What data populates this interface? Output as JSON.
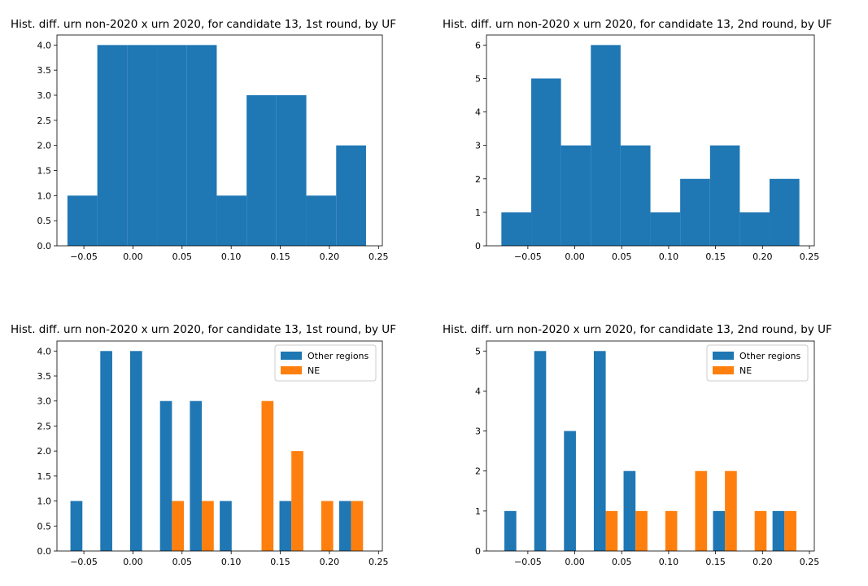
{
  "chart_data": [
    {
      "type": "bar",
      "title": "Hist. diff. urn non-2020 x urn 2020, for candidate 13, 1st round, by UF",
      "xlim": [
        -0.0774,
        0.2539
      ],
      "ylim": [
        0,
        4.2
      ],
      "x_ticks": [
        "−0.05",
        "0.00",
        "0.05",
        "0.10",
        "0.15",
        "0.20",
        "0.25"
      ],
      "x_tick_values": [
        -0.05,
        0,
        0.05,
        0.1,
        0.15,
        0.2,
        0.25
      ],
      "y_ticks": [
        "0.0",
        "0.5",
        "1.0",
        "1.5",
        "2.0",
        "2.5",
        "3.0",
        "3.5",
        "4.0"
      ],
      "y_tick_values": [
        0,
        0.5,
        1,
        1.5,
        2,
        2.5,
        3,
        3.5,
        4
      ],
      "bin_edges": [
        -0.0667,
        -0.0363,
        -0.0059,
        0.0245,
        0.0549,
        0.0853,
        0.1157,
        0.1461,
        0.1765,
        0.2069,
        0.2373
      ],
      "series": [
        {
          "color": "#1f77b4",
          "values": [
            1,
            4,
            4,
            4,
            4,
            1,
            3,
            3,
            1,
            2
          ]
        }
      ]
    },
    {
      "type": "bar",
      "title": "Hist. diff. urn non-2020 x urn 2020, for candidate 13, 2nd round, by UF",
      "xlim": [
        -0.0941,
        0.2552
      ],
      "ylim": [
        0,
        6.3
      ],
      "x_ticks": [
        "−0.05",
        "0.00",
        "0.05",
        "0.10",
        "0.15",
        "0.20",
        "0.25"
      ],
      "x_tick_values": [
        -0.05,
        0,
        0.05,
        0.1,
        0.15,
        0.2,
        0.25
      ],
      "y_ticks": [
        "0",
        "1",
        "2",
        "3",
        "4",
        "5",
        "6"
      ],
      "y_tick_values": [
        0,
        1,
        2,
        3,
        4,
        5,
        6
      ],
      "bin_edges": [
        -0.0782,
        -0.0464,
        -0.0147,
        0.0171,
        0.0488,
        0.0806,
        0.1123,
        0.1441,
        0.1758,
        0.2075,
        0.2393
      ],
      "series": [
        {
          "color": "#1f77b4",
          "values": [
            1,
            5,
            3,
            6,
            3,
            1,
            2,
            3,
            1,
            2
          ]
        }
      ]
    },
    {
      "type": "bar",
      "title": "Hist. diff. urn non-2020 x urn 2020, for candidate 13, 1st round, by UF",
      "xlim": [
        -0.0774,
        0.2539
      ],
      "ylim": [
        0,
        4.2
      ],
      "x_ticks": [
        "−0.05",
        "0.00",
        "0.05",
        "0.10",
        "0.15",
        "0.20",
        "0.25"
      ],
      "x_tick_values": [
        -0.05,
        0,
        0.05,
        0.1,
        0.15,
        0.2,
        0.25
      ],
      "y_ticks": [
        "0.0",
        "0.5",
        "1.0",
        "1.5",
        "2.0",
        "2.5",
        "3.0",
        "3.5",
        "4.0"
      ],
      "y_tick_values": [
        0,
        0.5,
        1,
        1.5,
        2,
        2.5,
        3,
        3.5,
        4
      ],
      "bin_edges": [
        -0.0667,
        -0.0363,
        -0.0059,
        0.0245,
        0.0549,
        0.0853,
        0.1157,
        0.1461,
        0.1765,
        0.2069,
        0.2373
      ],
      "legend": "top-right",
      "series": [
        {
          "name": "Other regions",
          "color": "#1f77b4",
          "values": [
            1,
            4,
            4,
            3,
            3,
            1,
            0,
            1,
            0,
            1
          ]
        },
        {
          "name": "NE",
          "color": "#ff7f0e",
          "values": [
            0,
            0,
            0,
            1,
            1,
            0,
            3,
            2,
            1,
            1
          ]
        }
      ]
    },
    {
      "type": "bar",
      "title": "Hist. diff. urn non-2020 x urn 2020, for candidate 13, 2nd round, by UF",
      "xlim": [
        -0.0941,
        0.2552
      ],
      "ylim": [
        0,
        5.25
      ],
      "x_ticks": [
        "−0.05",
        "0.00",
        "0.05",
        "0.10",
        "0.15",
        "0.20",
        "0.25"
      ],
      "x_tick_values": [
        -0.05,
        0,
        0.05,
        0.1,
        0.15,
        0.2,
        0.25
      ],
      "y_ticks": [
        "0",
        "1",
        "2",
        "3",
        "4",
        "5"
      ],
      "y_tick_values": [
        0,
        1,
        2,
        3,
        4,
        5
      ],
      "bin_edges": [
        -0.0782,
        -0.0464,
        -0.0147,
        0.0171,
        0.0488,
        0.0806,
        0.1123,
        0.1441,
        0.1758,
        0.2075,
        0.2393
      ],
      "legend": "top-right",
      "series": [
        {
          "name": "Other regions",
          "color": "#1f77b4",
          "values": [
            1,
            5,
            3,
            5,
            2,
            0,
            0,
            1,
            0,
            1
          ]
        },
        {
          "name": "NE",
          "color": "#ff7f0e",
          "values": [
            0,
            0,
            0,
            1,
            1,
            1,
            2,
            2,
            1,
            1
          ]
        }
      ]
    }
  ]
}
